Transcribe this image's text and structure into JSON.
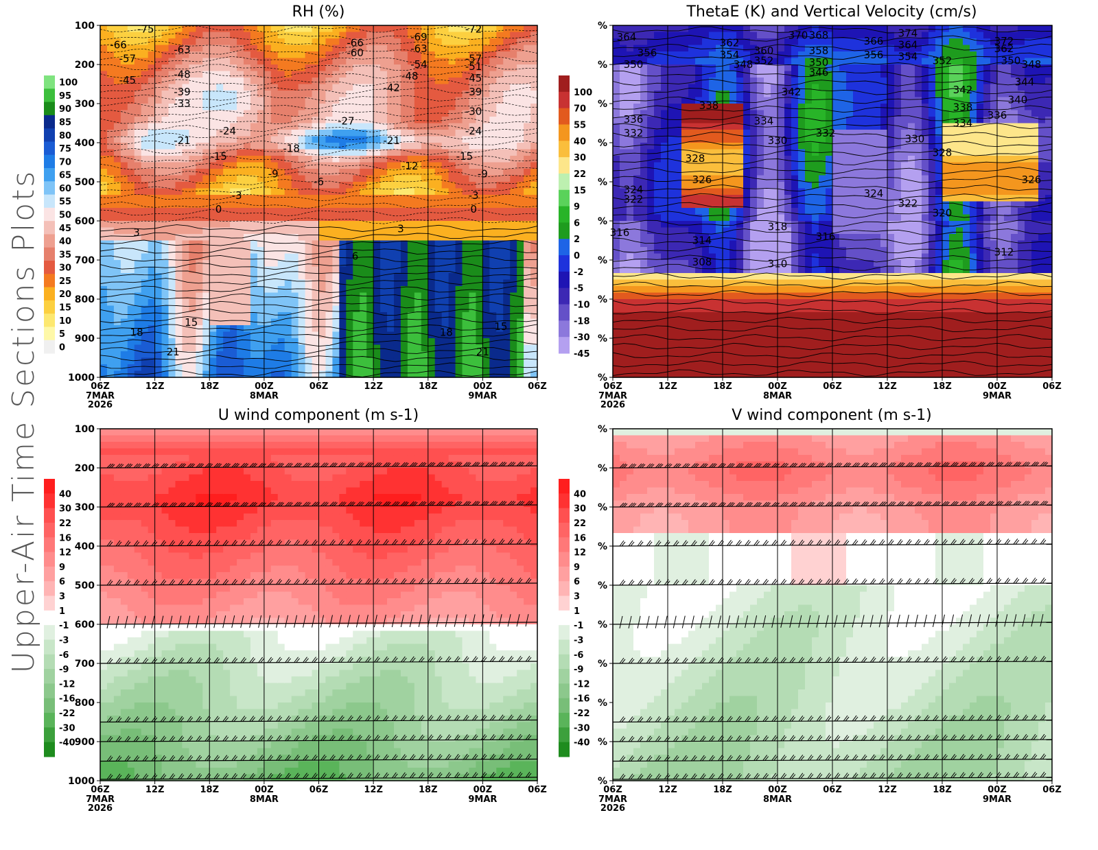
{
  "page_title": "Upper-Air Time Sections Plots",
  "colors": {
    "text": "#000000",
    "contour": "#000000",
    "grid": "#000000",
    "missing": "#f0f0f0"
  },
  "chart_data": [
    {
      "id": "rh",
      "type": "heatmap",
      "title": "RH (%)",
      "x_labels": [
        {
          "top": "06Z",
          "sub": [
            "7MAR",
            "2026"
          ]
        },
        {
          "top": "12Z",
          "sub": []
        },
        {
          "top": "18Z",
          "sub": []
        },
        {
          "top": "00Z",
          "sub": [
            "8MAR"
          ]
        },
        {
          "top": "06Z",
          "sub": []
        },
        {
          "top": "12Z",
          "sub": []
        },
        {
          "top": "18Z",
          "sub": []
        },
        {
          "top": "00Z",
          "sub": [
            "9MAR"
          ]
        },
        {
          "top": "06Z",
          "sub": []
        }
      ],
      "xlim": [
        0,
        48
      ],
      "y_ticks": [
        "100",
        "200",
        "300",
        "400",
        "500",
        "600",
        "700",
        "800",
        "900",
        "1000"
      ],
      "ylim": [
        100,
        1000
      ],
      "colorbar": {
        "labels": [
          "100",
          "95",
          "90",
          "85",
          "80",
          "75",
          "70",
          "65",
          "60",
          "55",
          "50",
          "45",
          "40",
          "35",
          "30",
          "25",
          "20",
          "15",
          "10",
          "5",
          "0"
        ],
        "colors": [
          "#7fe37f",
          "#3cbf3c",
          "#1a8c1a",
          "#0a2a8c",
          "#1040b0",
          "#1a5cd4",
          "#1e7ce6",
          "#3fa0f0",
          "#7fc4f7",
          "#c8e6fb",
          "#fbe4e4",
          "#f4c0b8",
          "#eea090",
          "#e6806c",
          "#e45a40",
          "#f47a20",
          "#fbb020",
          "#fcd040",
          "#fde870",
          "#fef8a8",
          "#f0f0f0"
        ]
      },
      "contour_labels": [
        {
          "t": "-75",
          "x": 5,
          "p": 110
        },
        {
          "t": "-66",
          "x": 2,
          "p": 150
        },
        {
          "t": "-63",
          "x": 9,
          "p": 162
        },
        {
          "t": "-57",
          "x": 3,
          "p": 185
        },
        {
          "t": "-48",
          "x": 9,
          "p": 225
        },
        {
          "t": "-45",
          "x": 3,
          "p": 240
        },
        {
          "t": "-39",
          "x": 9,
          "p": 270
        },
        {
          "t": "-33",
          "x": 9,
          "p": 300
        },
        {
          "t": "-24",
          "x": 14,
          "p": 370
        },
        {
          "t": "-21",
          "x": 9,
          "p": 395
        },
        {
          "t": "-15",
          "x": 13,
          "p": 435
        },
        {
          "t": "-18",
          "x": 21,
          "p": 415
        },
        {
          "t": "-9",
          "x": 19,
          "p": 480
        },
        {
          "t": "-6",
          "x": 24,
          "p": 500
        },
        {
          "t": "-3",
          "x": 15,
          "p": 535
        },
        {
          "t": "0",
          "x": 13,
          "p": 570
        },
        {
          "t": "3",
          "x": 4,
          "p": 630
        },
        {
          "t": "6",
          "x": 28,
          "p": 690
        },
        {
          "t": "3",
          "x": 33,
          "p": 620
        },
        {
          "t": "15",
          "x": 10,
          "p": 860
        },
        {
          "t": "18",
          "x": 4,
          "p": 885
        },
        {
          "t": "21",
          "x": 8,
          "p": 935
        },
        {
          "t": "-66",
          "x": 28,
          "p": 145
        },
        {
          "t": "-69",
          "x": 35,
          "p": 130
        },
        {
          "t": "-72",
          "x": 41,
          "p": 110
        },
        {
          "t": "-60",
          "x": 28,
          "p": 170
        },
        {
          "t": "-63",
          "x": 35,
          "p": 160
        },
        {
          "t": "-54",
          "x": 35,
          "p": 200
        },
        {
          "t": "-57",
          "x": 41,
          "p": 185
        },
        {
          "t": "-51",
          "x": 41,
          "p": 205
        },
        {
          "t": "-48",
          "x": 34,
          "p": 230
        },
        {
          "t": "-45",
          "x": 41,
          "p": 235
        },
        {
          "t": "-42",
          "x": 32,
          "p": 260
        },
        {
          "t": "-39",
          "x": 41,
          "p": 270
        },
        {
          "t": "-30",
          "x": 41,
          "p": 320
        },
        {
          "t": "-27",
          "x": 27,
          "p": 345
        },
        {
          "t": "-24",
          "x": 41,
          "p": 370
        },
        {
          "t": "-21",
          "x": 32,
          "p": 395
        },
        {
          "t": "-15",
          "x": 40,
          "p": 435
        },
        {
          "t": "-12",
          "x": 34,
          "p": 460
        },
        {
          "t": "-9",
          "x": 42,
          "p": 480
        },
        {
          "t": "-3",
          "x": 41,
          "p": 535
        },
        {
          "t": "0",
          "x": 41,
          "p": 570
        },
        {
          "t": "18",
          "x": 38,
          "p": 885
        },
        {
          "t": "21",
          "x": 42,
          "p": 935
        },
        {
          "t": "15",
          "x": 44,
          "p": 870
        }
      ]
    },
    {
      "id": "thetae",
      "type": "heatmap",
      "title": "ThetaE (K) and Vertical Velocity (cm/s)",
      "x_labels": [
        {
          "top": "06Z",
          "sub": [
            "7MAR",
            "2026"
          ]
        },
        {
          "top": "12Z",
          "sub": []
        },
        {
          "top": "18Z",
          "sub": []
        },
        {
          "top": "00Z",
          "sub": [
            "8MAR"
          ]
        },
        {
          "top": "06Z",
          "sub": []
        },
        {
          "top": "12Z",
          "sub": []
        },
        {
          "top": "18Z",
          "sub": []
        },
        {
          "top": "00Z",
          "sub": [
            "9MAR"
          ]
        },
        {
          "top": "06Z",
          "sub": []
        }
      ],
      "xlim": [
        0,
        48
      ],
      "y_ticks": [
        "%",
        "%",
        "%",
        "%",
        "%",
        "%",
        "%",
        "%",
        "%",
        "%"
      ],
      "ylim": [
        100,
        1000
      ],
      "colorbar": {
        "labels": [
          "100",
          "70",
          "55",
          "40",
          "30",
          "22",
          "15",
          "9",
          "6",
          "2",
          "0",
          "-2",
          "-5",
          "-10",
          "-18",
          "-30",
          "-45"
        ],
        "colors": [
          "#a01e1e",
          "#c83232",
          "#e25a1e",
          "#f4961e",
          "#fabe3c",
          "#fde68a",
          "#bdf0b0",
          "#5ad25a",
          "#28b428",
          "#1e9c1e",
          "#1e64e6",
          "#1e32dc",
          "#1e14b4",
          "#3c28b4",
          "#6450c8",
          "#8c78dc",
          "#b4a0f0"
        ]
      },
      "contour_labels": [
        {
          "t": "364",
          "x": 2,
          "p": 130
        },
        {
          "t": "356",
          "x": 5,
          "p": 170
        },
        {
          "t": "350",
          "x": 3,
          "p": 200
        },
        {
          "t": "354",
          "x": 17,
          "p": 175
        },
        {
          "t": "362",
          "x": 17,
          "p": 145
        },
        {
          "t": "348",
          "x": 19,
          "p": 200
        },
        {
          "t": "352",
          "x": 22,
          "p": 190
        },
        {
          "t": "360",
          "x": 22,
          "p": 165
        },
        {
          "t": "370",
          "x": 27,
          "p": 125
        },
        {
          "t": "368",
          "x": 30,
          "p": 125
        },
        {
          "t": "358",
          "x": 30,
          "p": 165
        },
        {
          "t": "350",
          "x": 30,
          "p": 195
        },
        {
          "t": "346",
          "x": 30,
          "p": 220
        },
        {
          "t": "342",
          "x": 26,
          "p": 270
        },
        {
          "t": "366",
          "x": 38,
          "p": 140
        },
        {
          "t": "356",
          "x": 38,
          "p": 175
        },
        {
          "t": "374",
          "x": 43,
          "p": 120
        },
        {
          "t": "364",
          "x": 43,
          "p": 150
        },
        {
          "t": "354",
          "x": 43,
          "p": 180
        },
        {
          "t": "352",
          "x": 48,
          "p": 190
        },
        {
          "t": "372",
          "x": 57,
          "p": 140
        },
        {
          "t": "362",
          "x": 57,
          "p": 160
        },
        {
          "t": "350",
          "x": 58,
          "p": 190
        },
        {
          "t": "348",
          "x": 61,
          "p": 200
        },
        {
          "t": "344",
          "x": 60,
          "p": 245
        },
        {
          "t": "342",
          "x": 51,
          "p": 265
        },
        {
          "t": "340",
          "x": 59,
          "p": 290
        },
        {
          "t": "338",
          "x": 51,
          "p": 310
        },
        {
          "t": "336",
          "x": 56,
          "p": 330
        },
        {
          "t": "334",
          "x": 51,
          "p": 350
        },
        {
          "t": "338",
          "x": 14,
          "p": 305
        },
        {
          "t": "336",
          "x": 3,
          "p": 340
        },
        {
          "t": "332",
          "x": 3,
          "p": 375
        },
        {
          "t": "334",
          "x": 22,
          "p": 345
        },
        {
          "t": "332",
          "x": 31,
          "p": 375
        },
        {
          "t": "330",
          "x": 24,
          "p": 395
        },
        {
          "t": "330",
          "x": 44,
          "p": 390
        },
        {
          "t": "328",
          "x": 48,
          "p": 425
        },
        {
          "t": "328",
          "x": 12,
          "p": 440
        },
        {
          "t": "326",
          "x": 13,
          "p": 495
        },
        {
          "t": "326",
          "x": 61,
          "p": 495
        },
        {
          "t": "324",
          "x": 3,
          "p": 520
        },
        {
          "t": "324",
          "x": 38,
          "p": 530
        },
        {
          "t": "322",
          "x": 3,
          "p": 545
        },
        {
          "t": "322",
          "x": 43,
          "p": 555
        },
        {
          "t": "320",
          "x": 48,
          "p": 580
        },
        {
          "t": "318",
          "x": 24,
          "p": 615
        },
        {
          "t": "316",
          "x": 1,
          "p": 630
        },
        {
          "t": "316",
          "x": 31,
          "p": 640
        },
        {
          "t": "314",
          "x": 13,
          "p": 650
        },
        {
          "t": "312",
          "x": 57,
          "p": 680
        },
        {
          "t": "310",
          "x": 24,
          "p": 710
        },
        {
          "t": "308",
          "x": 13,
          "p": 705
        }
      ]
    },
    {
      "id": "uwind",
      "type": "heatmap",
      "title": "U wind component (m s-1)",
      "x_labels": [
        {
          "top": "06Z",
          "sub": [
            "7MAR",
            "2026"
          ]
        },
        {
          "top": "12Z",
          "sub": []
        },
        {
          "top": "18Z",
          "sub": []
        },
        {
          "top": "00Z",
          "sub": [
            "8MAR"
          ]
        },
        {
          "top": "06Z",
          "sub": []
        },
        {
          "top": "12Z",
          "sub": []
        },
        {
          "top": "18Z",
          "sub": []
        },
        {
          "top": "00Z",
          "sub": [
            "9MAR"
          ]
        },
        {
          "top": "06Z",
          "sub": []
        }
      ],
      "xlim": [
        0,
        48
      ],
      "y_ticks": [
        "100",
        "200",
        "300",
        "400",
        "500",
        "600",
        "700",
        "800",
        "900",
        "1000"
      ],
      "ylim": [
        100,
        1000
      ],
      "barb_levels": [
        200,
        300,
        400,
        500,
        600,
        700,
        850,
        900,
        950,
        1000
      ],
      "colorbar": {
        "labels": [
          "40",
          "30",
          "22",
          "16",
          "12",
          "9",
          "6",
          "3",
          "1",
          "-1",
          "-3",
          "-6",
          "-9",
          "-12",
          "-16",
          "-22",
          "-30",
          "-40"
        ],
        "colors": [
          "#ff1e1e",
          "#ff3232",
          "#ff5050",
          "#ff6464",
          "#ff7878",
          "#ff8c8c",
          "#ffa0a0",
          "#ffb4b4",
          "#ffd2d2",
          "#ffffff",
          "#e0f0e0",
          "#c8e6c8",
          "#b4dcb4",
          "#a0d2a0",
          "#8cc88c",
          "#78be78",
          "#5ab45a",
          "#3ca03c",
          "#1e8c1e"
        ]
      }
    },
    {
      "id": "vwind",
      "type": "heatmap",
      "title": "V wind component (m s-1)",
      "x_labels": [
        {
          "top": "06Z",
          "sub": [
            "7MAR",
            "2026"
          ]
        },
        {
          "top": "12Z",
          "sub": []
        },
        {
          "top": "18Z",
          "sub": []
        },
        {
          "top": "00Z",
          "sub": [
            "8MAR"
          ]
        },
        {
          "top": "06Z",
          "sub": []
        },
        {
          "top": "12Z",
          "sub": []
        },
        {
          "top": "18Z",
          "sub": []
        },
        {
          "top": "00Z",
          "sub": [
            "9MAR"
          ]
        },
        {
          "top": "06Z",
          "sub": []
        }
      ],
      "xlim": [
        0,
        48
      ],
      "y_ticks": [
        "%",
        "%",
        "%",
        "%",
        "%",
        "%",
        "%",
        "%",
        "%",
        "%"
      ],
      "ylim": [
        100,
        1000
      ],
      "barb_levels": [
        200,
        300,
        400,
        500,
        600,
        700,
        850,
        900,
        950,
        1000
      ],
      "colorbar": {
        "labels": [
          "40",
          "30",
          "22",
          "16",
          "12",
          "9",
          "6",
          "3",
          "1",
          "-1",
          "-3",
          "-6",
          "-9",
          "-12",
          "-16",
          "-22",
          "-30",
          "-40"
        ],
        "colors": [
          "#ff1e1e",
          "#ff3232",
          "#ff5050",
          "#ff6464",
          "#ff7878",
          "#ff8c8c",
          "#ffa0a0",
          "#ffb4b4",
          "#ffd2d2",
          "#ffffff",
          "#e0f0e0",
          "#c8e6c8",
          "#b4dcb4",
          "#a0d2a0",
          "#8cc88c",
          "#78be78",
          "#5ab45a",
          "#3ca03c",
          "#1e8c1e"
        ]
      }
    }
  ]
}
